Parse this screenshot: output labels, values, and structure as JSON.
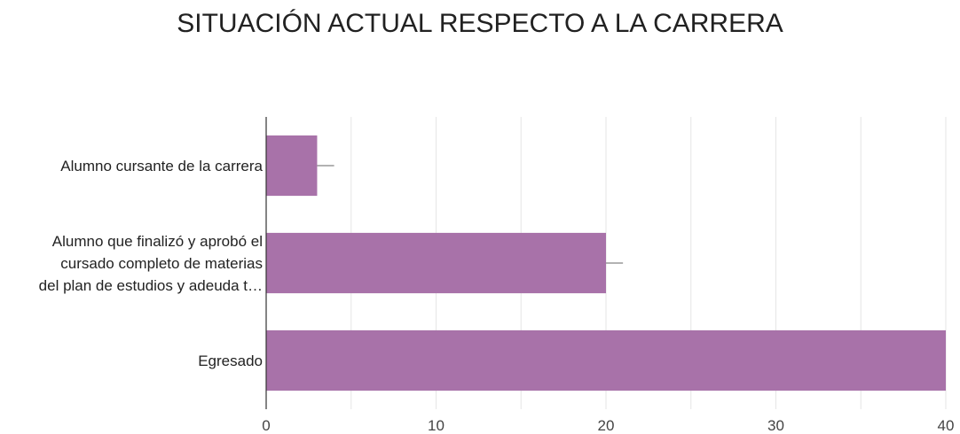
{
  "chart_data": {
    "type": "bar",
    "orientation": "horizontal",
    "title": "SITUACIÓN ACTUAL RESPECTO A LA CARRERA",
    "categories": [
      [
        "Alumno cursante de la carrera"
      ],
      [
        "Alumno que finalizó y aprobó el",
        "cursado completo de materias",
        "del plan de estudios y adeuda t…"
      ],
      [
        "Egresado"
      ]
    ],
    "values": [
      3,
      20,
      40
    ],
    "error_bars": [
      1,
      1,
      0
    ],
    "xlim": [
      0,
      40
    ],
    "x_ticks": [
      0,
      10,
      20,
      30,
      40
    ],
    "x_ticks_labels": [
      "0",
      "10",
      "20",
      "30",
      "40"
    ],
    "grid": true,
    "legend": "none",
    "colors": {
      "bar": "#a872a9",
      "grid": "#e6e6e6",
      "axis": "#333333",
      "error": "#999999"
    }
  }
}
